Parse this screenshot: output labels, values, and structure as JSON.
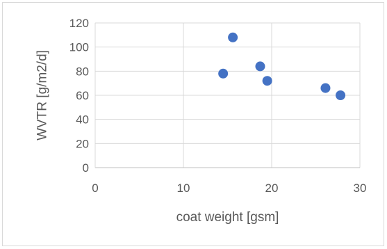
{
  "chart_data": {
    "type": "scatter",
    "title": "",
    "xlabel": "coat weight [gsm]",
    "ylabel": "WVTR [g/m2/d]",
    "xlim": [
      0,
      30
    ],
    "ylim": [
      0,
      120
    ],
    "x_ticks": [
      0,
      10,
      20,
      30
    ],
    "y_ticks": [
      0,
      20,
      40,
      60,
      80,
      100,
      120
    ],
    "grid": true,
    "legend": "none",
    "series": [
      {
        "color": "#4472c4",
        "points": [
          {
            "x": 14.5,
            "y": 78
          },
          {
            "x": 15.6,
            "y": 108
          },
          {
            "x": 18.7,
            "y": 84
          },
          {
            "x": 19.5,
            "y": 72
          },
          {
            "x": 26.1,
            "y": 66
          },
          {
            "x": 27.8,
            "y": 60
          }
        ]
      }
    ]
  }
}
